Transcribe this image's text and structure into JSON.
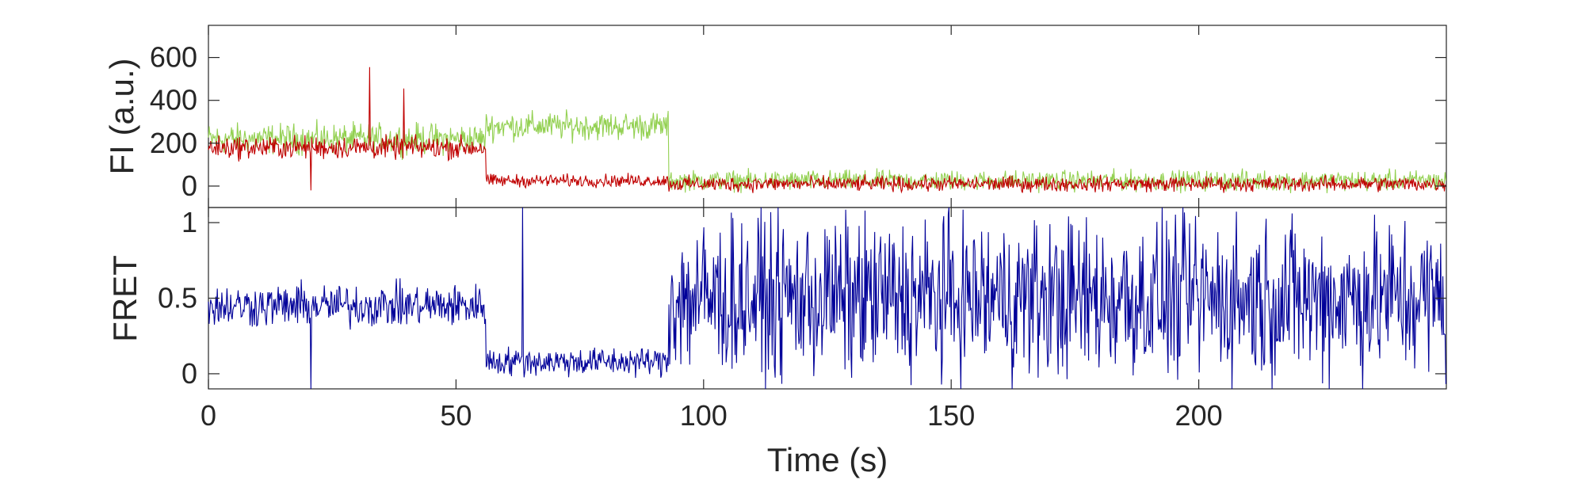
{
  "chart_data": [
    {
      "type": "line",
      "panel": "top",
      "ylabel": "FI (a.u.)",
      "xlabel": "",
      "xlim": [
        0,
        250
      ],
      "ylim": [
        -100,
        750
      ],
      "yticks": [
        0,
        200,
        400,
        600
      ],
      "ytick_labels": [
        "0",
        "200",
        "400",
        "600"
      ],
      "grid": false,
      "series": [
        {
          "color": "#92d050",
          "approx_levels": [
            {
              "x_start": 0,
              "x_end": 56,
              "mean": 220,
              "noise": 60
            },
            {
              "x_start": 56,
              "x_end": 93,
              "mean": 280,
              "noise": 55
            },
            {
              "x_start": 93,
              "x_end": 250,
              "mean": 25,
              "noise": 40
            }
          ],
          "spikes": []
        },
        {
          "color": "#c00000",
          "approx_levels": [
            {
              "x_start": 0,
              "x_end": 56,
              "mean": 180,
              "noise": 45
            },
            {
              "x_start": 56,
              "x_end": 93,
              "mean": 25,
              "noise": 25
            },
            {
              "x_start": 93,
              "x_end": 250,
              "mean": 10,
              "noise": 30
            }
          ],
          "spikes": [
            {
              "x": 32.5,
              "y": 555
            },
            {
              "x": 39.5,
              "y": 455
            },
            {
              "x": 20.7,
              "y": -20
            }
          ]
        }
      ]
    },
    {
      "type": "line",
      "panel": "bottom",
      "ylabel": "FRET",
      "xlabel": "Time (s)",
      "xlim": [
        0,
        250
      ],
      "ylim": [
        -0.1,
        1.1
      ],
      "xticks": [
        0,
        50,
        100,
        150,
        200
      ],
      "xtick_labels": [
        "0",
        "50",
        "100",
        "150",
        "200"
      ],
      "yticks": [
        0,
        0.5,
        1
      ],
      "ytick_labels": [
        "0",
        "0.5",
        "1"
      ],
      "grid": false,
      "series": [
        {
          "color": "#000099",
          "approx_levels": [
            {
              "x_start": 0,
              "x_end": 56,
              "mean": 0.45,
              "noise": 0.12
            },
            {
              "x_start": 56,
              "x_end": 93,
              "mean": 0.08,
              "noise": 0.08
            },
            {
              "x_start": 93,
              "x_end": 250,
              "mean": 0.5,
              "noise": 0.45
            }
          ],
          "spikes": [
            {
              "x": 20.7,
              "y": -0.1
            },
            {
              "x": 63.5,
              "y": 1.1
            }
          ]
        }
      ]
    }
  ]
}
